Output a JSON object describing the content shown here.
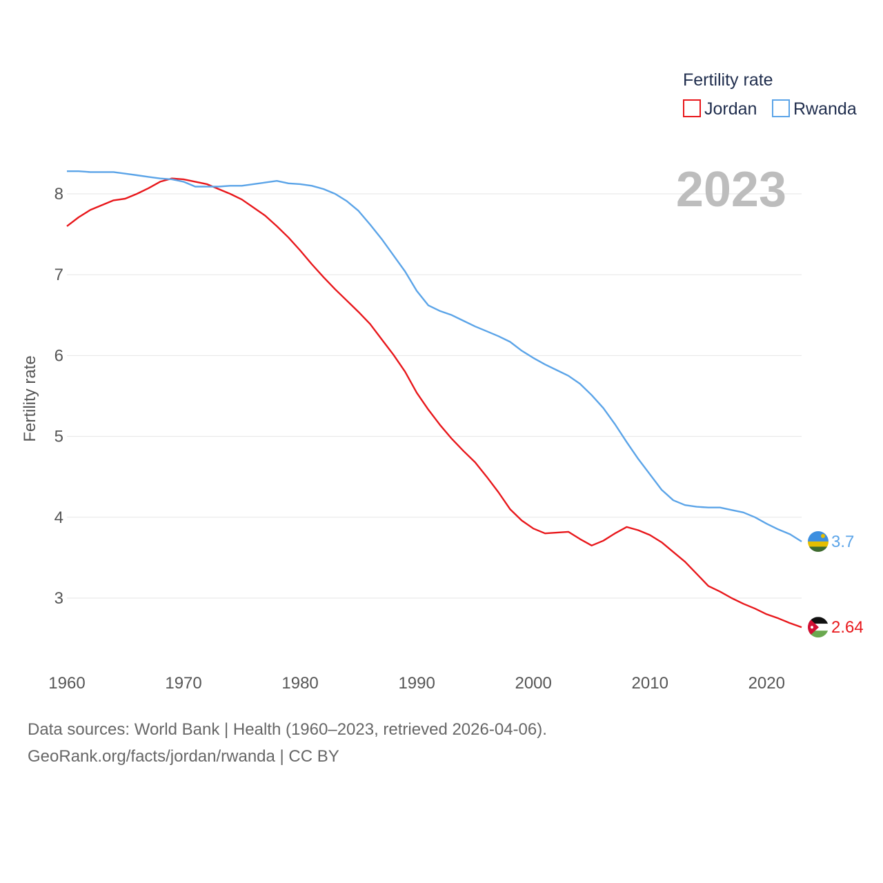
{
  "chart_data": {
    "type": "line",
    "title": "",
    "xlabel": "",
    "ylabel": "Fertility rate",
    "year_label": "2023",
    "xlim": [
      1960,
      2023
    ],
    "ylim": [
      2.3,
      8.7
    ],
    "xticks": [
      1960,
      1970,
      1980,
      1990,
      2000,
      2010,
      2020
    ],
    "yticks": [
      3,
      4,
      5,
      6,
      7,
      8
    ],
    "legend": {
      "title": "Fertility rate",
      "position": "top-right"
    },
    "x": [
      1960,
      1961,
      1962,
      1963,
      1964,
      1965,
      1966,
      1967,
      1968,
      1969,
      1970,
      1971,
      1972,
      1973,
      1974,
      1975,
      1976,
      1977,
      1978,
      1979,
      1980,
      1981,
      1982,
      1983,
      1984,
      1985,
      1986,
      1987,
      1988,
      1989,
      1990,
      1991,
      1992,
      1993,
      1994,
      1995,
      1996,
      1997,
      1998,
      1999,
      2000,
      2001,
      2002,
      2003,
      2004,
      2005,
      2006,
      2007,
      2008,
      2009,
      2010,
      2011,
      2012,
      2013,
      2014,
      2015,
      2016,
      2017,
      2018,
      2019,
      2020,
      2021,
      2022,
      2023
    ],
    "series": [
      {
        "name": "Jordan",
        "color": "#e8171b",
        "end_label": "2.64",
        "flag": "jordan-flag-icon",
        "values": [
          7.6,
          7.71,
          7.8,
          7.86,
          7.92,
          7.94,
          8.0,
          8.07,
          8.15,
          8.19,
          8.18,
          8.15,
          8.12,
          8.06,
          8.0,
          7.93,
          7.83,
          7.73,
          7.6,
          7.46,
          7.3,
          7.13,
          6.97,
          6.82,
          6.68,
          6.54,
          6.39,
          6.2,
          6.01,
          5.8,
          5.54,
          5.33,
          5.14,
          4.97,
          4.82,
          4.68,
          4.5,
          4.31,
          4.1,
          3.96,
          3.86,
          3.8,
          3.81,
          3.82,
          3.73,
          3.65,
          3.71,
          3.8,
          3.88,
          3.84,
          3.78,
          3.69,
          3.57,
          3.45,
          3.3,
          3.15,
          3.08,
          3.0,
          2.93,
          2.87,
          2.8,
          2.75,
          2.69,
          2.64
        ]
      },
      {
        "name": "Rwanda",
        "color": "#5ba4e8",
        "end_label": "3.7",
        "flag": "rwanda-flag-icon",
        "values": [
          8.28,
          8.28,
          8.27,
          8.27,
          8.27,
          8.25,
          8.23,
          8.21,
          8.19,
          8.18,
          8.15,
          8.09,
          8.09,
          8.09,
          8.1,
          8.1,
          8.12,
          8.14,
          8.16,
          8.13,
          8.12,
          8.1,
          8.06,
          8.0,
          7.91,
          7.79,
          7.62,
          7.44,
          7.24,
          7.04,
          6.8,
          6.62,
          6.55,
          6.5,
          6.43,
          6.36,
          6.3,
          6.24,
          6.17,
          6.06,
          5.97,
          5.89,
          5.82,
          5.75,
          5.65,
          5.51,
          5.35,
          5.15,
          4.93,
          4.72,
          4.53,
          4.34,
          4.21,
          4.15,
          4.13,
          4.12,
          4.12,
          4.09,
          4.06,
          4.0,
          3.92,
          3.85,
          3.79,
          3.7
        ]
      }
    ]
  },
  "footer": {
    "sources": "Data sources: World Bank | Health (1960–2023, retrieved 2026-04-06).",
    "credit": "GeoRank.org/facts/jordan/rwanda | CC BY"
  }
}
